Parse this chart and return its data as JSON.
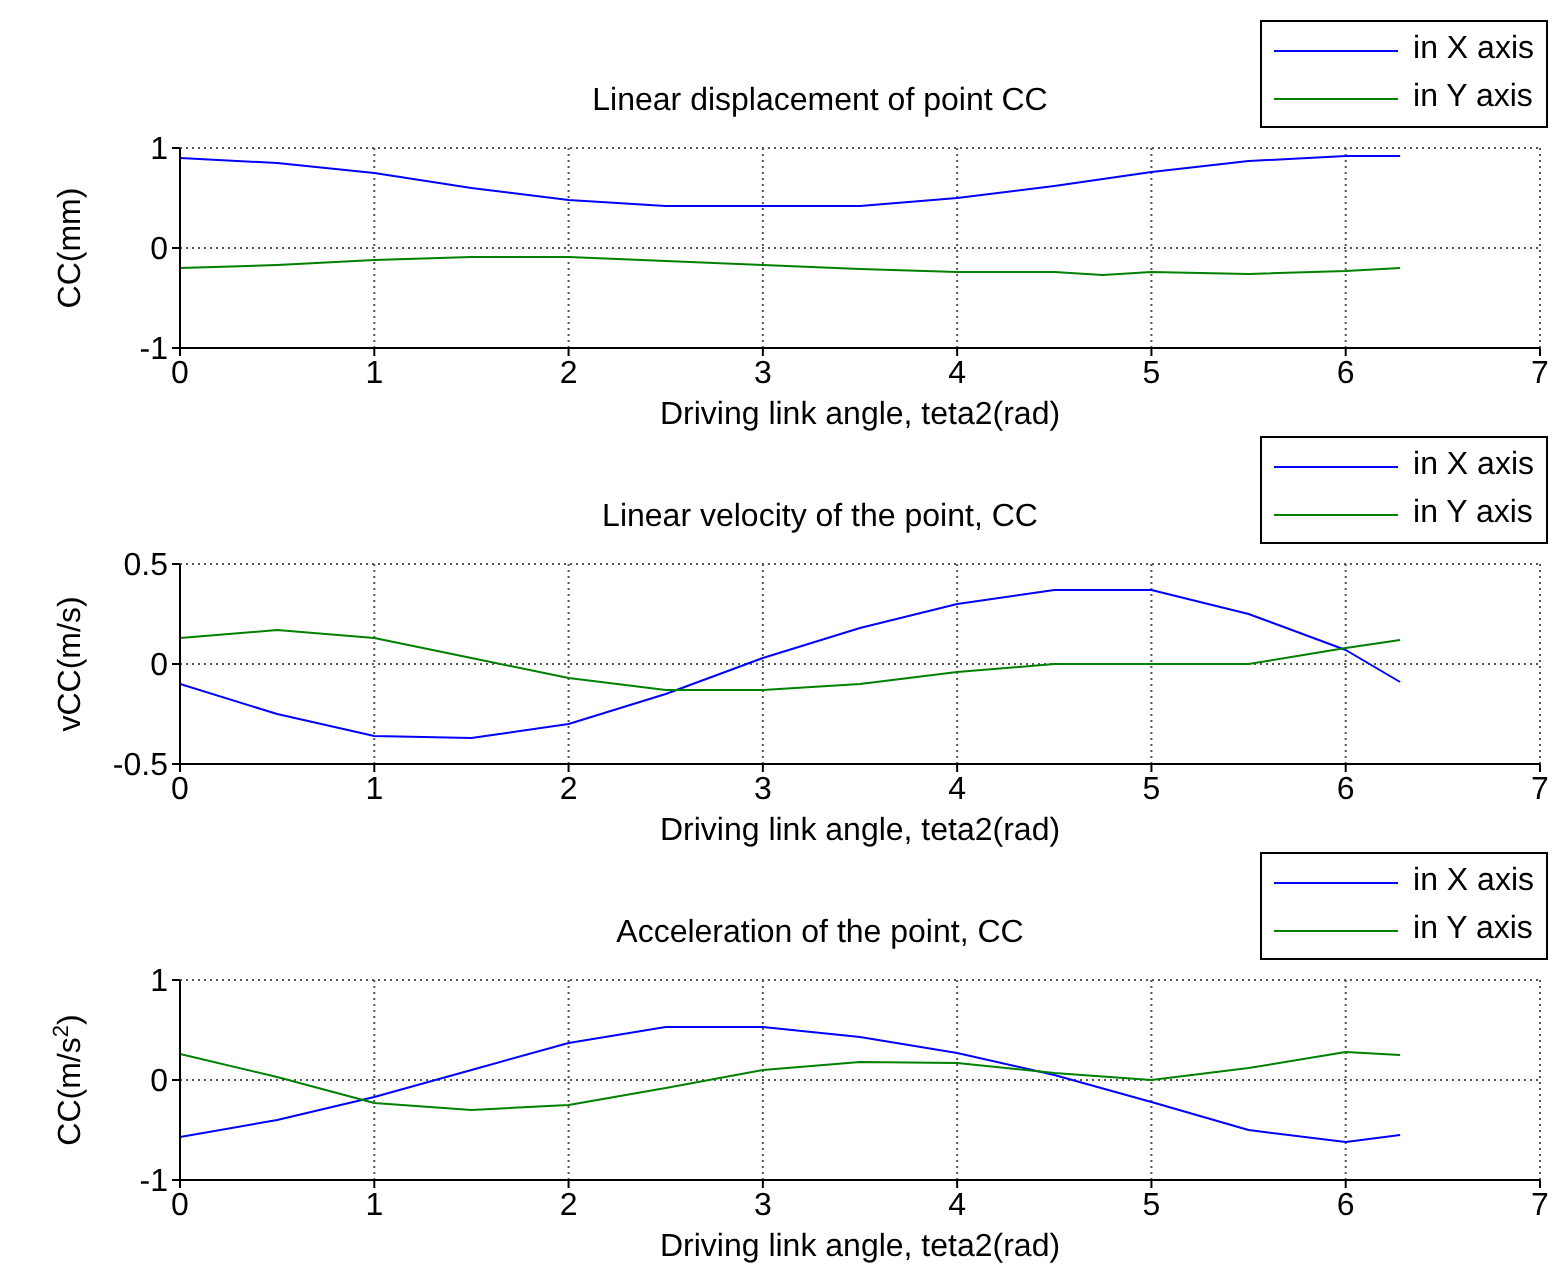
{
  "chart_data": [
    {
      "type": "line",
      "title": "Linear displacement of point CC",
      "xlabel": "Driving link angle, teta2(rad)",
      "ylabel": "CC(mm)",
      "x": [
        0,
        0.5,
        1,
        1.5,
        2,
        2.5,
        3,
        3.5,
        4,
        4.5,
        4.75,
        5,
        5.5,
        6,
        6.28
      ],
      "xlim": [
        0,
        7
      ],
      "xticks": [
        0,
        1,
        2,
        3,
        4,
        5,
        6,
        7
      ],
      "ylim": [
        -1,
        1
      ],
      "yticks": [
        -1,
        0,
        1
      ],
      "grid": true,
      "legend": "top right",
      "series": [
        {
          "name": "in X axis",
          "color": "#0000ff",
          "values": [
            0.9,
            0.85,
            0.75,
            0.6,
            0.48,
            0.42,
            0.42,
            0.42,
            0.5,
            0.62,
            0.69,
            0.76,
            0.87,
            0.92,
            0.92
          ]
        },
        {
          "name": "in Y axis",
          "color": "#008000",
          "values": [
            -0.2,
            -0.17,
            -0.12,
            -0.09,
            -0.09,
            -0.13,
            -0.17,
            -0.21,
            -0.24,
            -0.24,
            -0.27,
            -0.24,
            -0.26,
            -0.23,
            -0.2
          ]
        }
      ]
    },
    {
      "type": "line",
      "title": "Linear velocity of the point, CC",
      "xlabel": "Driving link angle, teta2(rad)",
      "ylabel": "vCC(m/s)",
      "x": [
        0,
        0.5,
        1,
        1.5,
        2,
        2.5,
        3,
        3.5,
        4,
        4.5,
        5,
        5.5,
        6,
        6.28
      ],
      "xlim": [
        0,
        7
      ],
      "xticks": [
        0,
        1,
        2,
        3,
        4,
        5,
        6,
        7
      ],
      "ylim": [
        -0.5,
        0.5
      ],
      "yticks": [
        -0.5,
        0,
        0.5
      ],
      "grid": true,
      "legend": "top right",
      "series": [
        {
          "name": "in X axis",
          "color": "#0000ff",
          "values": [
            -0.1,
            -0.25,
            -0.36,
            -0.37,
            -0.3,
            -0.15,
            0.03,
            0.18,
            0.3,
            0.37,
            0.37,
            0.25,
            0.07,
            -0.09
          ]
        },
        {
          "name": "in Y axis",
          "color": "#008000",
          "values": [
            0.13,
            0.17,
            0.13,
            0.03,
            -0.07,
            -0.13,
            -0.13,
            -0.1,
            -0.04,
            0,
            0,
            0,
            0.08,
            0.12
          ]
        }
      ]
    },
    {
      "type": "line",
      "title": "Acceleration of the point, CC",
      "xlabel": "Driving link angle, teta2(rad)",
      "ylabel": "CC(m/s$^{2}$)",
      "x": [
        0,
        0.5,
        1,
        1.5,
        2,
        2.5,
        3,
        3.5,
        4,
        4.5,
        5,
        5.5,
        6,
        6.28
      ],
      "xlim": [
        0,
        7
      ],
      "xticks": [
        0,
        1,
        2,
        3,
        4,
        5,
        6,
        7
      ],
      "ylim": [
        -1,
        1
      ],
      "yticks": [
        -1,
        0,
        1
      ],
      "grid": true,
      "legend": "top right",
      "series": [
        {
          "name": "in X axis",
          "color": "#0000ff",
          "values": [
            -0.57,
            -0.4,
            -0.17,
            0.1,
            0.37,
            0.53,
            0.53,
            0.43,
            0.27,
            0.05,
            -0.22,
            -0.5,
            -0.62,
            -0.55
          ]
        },
        {
          "name": "in Y axis",
          "color": "#008000",
          "values": [
            0.26,
            0.03,
            -0.23,
            -0.3,
            -0.25,
            -0.08,
            0.1,
            0.18,
            0.17,
            0.07,
            0,
            0.12,
            0.28,
            0.25
          ]
        }
      ]
    }
  ]
}
